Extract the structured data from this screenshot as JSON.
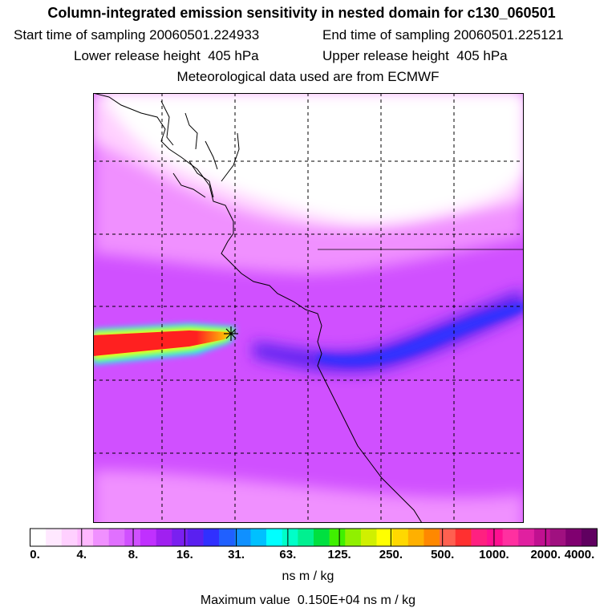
{
  "title": "Column-integrated emission sensitivity in nested domain for c130_060501",
  "sampling": {
    "start_label": "Start time of sampling",
    "start_value": "20060501.224933",
    "end_label": "End time of sampling",
    "end_value": "20060501.225121"
  },
  "release": {
    "lower_label": "Lower release height",
    "lower_value": "405 hPa",
    "upper_label": "Upper release height",
    "upper_value": "405 hPa"
  },
  "met_source": "Meteorological data used are from ECMWF",
  "colorbar": {
    "colors": [
      "#ffffff",
      "#ffe8ff",
      "#ffd0ff",
      "#ffb8ff",
      "#f090ff",
      "#e070ff",
      "#d050ff",
      "#c030ff",
      "#a020f0",
      "#7a20f0",
      "#5a20f0",
      "#3030ff",
      "#2060ff",
      "#1090ff",
      "#00c0ff",
      "#00ffff",
      "#00ffc8",
      "#00f090",
      "#00e040",
      "#40f000",
      "#90f000",
      "#d0f000",
      "#ffff00",
      "#ffd800",
      "#ffb000",
      "#ff8800",
      "#ff6050",
      "#ff3030",
      "#ff2080",
      "#ff1090",
      "#ff30a0",
      "#e020a0",
      "#c01090",
      "#a01080",
      "#800070",
      "#600060"
    ],
    "tick_labels": [
      "0.",
      "4.",
      "8.",
      "16.",
      "31.",
      "63.",
      "125.",
      "250.",
      "500.",
      "1000.",
      "2000.",
      "4000."
    ],
    "units": "ns m / kg"
  },
  "max_value": {
    "label": "Maximum value",
    "value": "0.150E+04",
    "units": "ns m / kg"
  },
  "map": {
    "release_marker": "release-point-star-icon",
    "colors": {
      "white": "#ffffff",
      "light_pink": "#ffd0ff",
      "pink": "#f090ff",
      "magenta": "#d050ff",
      "purple": "#a020f0",
      "blue": "#3030ff",
      "cyan": "#00ffff",
      "yellow": "#ffff00",
      "red": "#ff2020"
    }
  }
}
